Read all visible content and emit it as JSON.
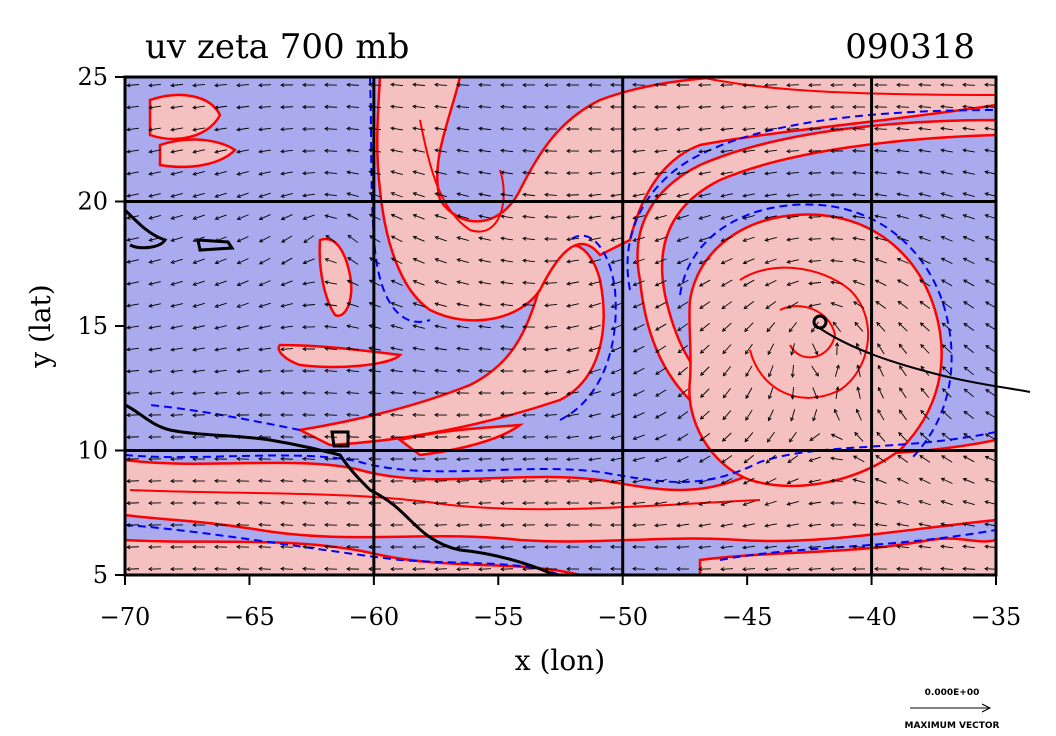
{
  "chart_data": {
    "type": "contour",
    "title": "uv zeta 700 mb",
    "date_label": "090318",
    "xlabel": "x (lon)",
    "ylabel": "y (lat)",
    "xlim": [
      -70,
      -35
    ],
    "ylim": [
      5,
      25
    ],
    "xticks": [
      -70,
      -65,
      -60,
      -55,
      -50,
      -45,
      -40,
      -35
    ],
    "yticks": [
      5,
      10,
      15,
      20,
      25
    ],
    "grid_lines_x": [
      -60,
      -50,
      -40
    ],
    "grid_lines_y": [
      10,
      20
    ],
    "grid": true,
    "colors": {
      "negative_fill": "#aaaaee",
      "positive_fill": "#f5c0c0",
      "positive_contour": "#ff0000",
      "negative_contour": "#0000ff",
      "coastline": "#000000",
      "vectors": "#000000"
    },
    "vector_legend": {
      "value": "0.000E+00",
      "label": "MAXIMUM VECTOR"
    },
    "storm_center": {
      "lon": -42,
      "lat": 15
    }
  }
}
